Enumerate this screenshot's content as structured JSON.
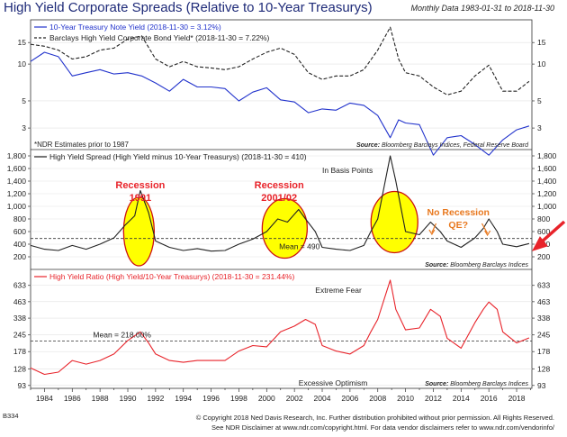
{
  "header": {
    "title": "High Yield Corporate Spreads (Relative to 10-Year Treasurys)",
    "period": "Monthly Data 1983-01-31 to 2018-11-30"
  },
  "footer": {
    "code": "B334",
    "line1": "© Copyright 2018 Ned Davis Research, Inc. Further distribution prohibited without prior permission. All Rights Reserved.",
    "line2": "See NDR Disclaimer at www.ndr.com/copyright.html. For data vendor disclaimers refer to www.ndr.com/vendorinfo/"
  },
  "colors": {
    "blue": "#2233cc",
    "black": "#222222",
    "red": "#e8232a",
    "ellipse_fill": "#ffff00",
    "ellipse_stroke": "#cc1111",
    "orange": "#e8781e"
  },
  "x_ticks": [
    "1984",
    "1986",
    "1988",
    "1990",
    "1992",
    "1994",
    "1996",
    "1998",
    "2000",
    "2002",
    "2004",
    "2006",
    "2008",
    "2010",
    "2012",
    "2014",
    "2016",
    "2018"
  ],
  "chart_data": [
    {
      "type": "line",
      "panel": "top",
      "scale": "log",
      "ylim": [
        2,
        23
      ],
      "yticks": [
        "15",
        "10",
        "5",
        "3"
      ],
      "legend": [
        {
          "label": "10-Year Treasury Note Yield (2018-11-30 = 3.12%)",
          "color": "#2233cc",
          "style": "solid"
        },
        {
          "label": "Barclays High Yield Corporate Bond Yield* (2018-11-30 = 7.22%)",
          "color": "#222222",
          "style": "dashed"
        }
      ],
      "note": "*NDR Estimates prior to 1987",
      "source": "Bloomberg Barclays Indices, Federal Reserve Board",
      "x": [
        1983,
        1984,
        1985,
        1986,
        1987,
        1988,
        1989,
        1990,
        1991,
        1992,
        1993,
        1994,
        1995,
        1996,
        1997,
        1998,
        1999,
        2000,
        2001,
        2002,
        2003,
        2004,
        2005,
        2006,
        2007,
        2008,
        2008.9,
        2009.5,
        2010,
        2011,
        2012,
        2013,
        2014,
        2015,
        2016,
        2017,
        2018,
        2018.9
      ],
      "series": [
        {
          "name": "10-Year Treasury Note Yield",
          "values": [
            10.5,
            12.5,
            11.5,
            8.0,
            8.5,
            9.0,
            8.3,
            8.5,
            8.0,
            7.0,
            6.0,
            7.5,
            6.5,
            6.5,
            6.3,
            5.0,
            5.9,
            6.4,
            5.1,
            4.9,
            4.0,
            4.3,
            4.2,
            4.8,
            4.6,
            3.8,
            2.5,
            3.5,
            3.3,
            3.2,
            1.8,
            2.5,
            2.6,
            2.2,
            1.8,
            2.4,
            2.9,
            3.12
          ]
        },
        {
          "name": "Barclays High Yield Corporate Bond Yield",
          "values": [
            14.5,
            14.0,
            13.0,
            11.0,
            11.5,
            13.0,
            13.5,
            16.0,
            17.0,
            11.0,
            9.5,
            10.5,
            9.5,
            9.3,
            9.0,
            9.5,
            11.0,
            12.5,
            13.5,
            12.0,
            8.5,
            7.5,
            8.0,
            8.0,
            9.0,
            13.0,
            20.0,
            11.0,
            8.5,
            8.0,
            6.5,
            5.6,
            6.0,
            8.0,
            9.8,
            6.0,
            6.0,
            7.22
          ]
        }
      ]
    },
    {
      "type": "line",
      "panel": "middle",
      "ylim": [
        0,
        1900
      ],
      "yticks": [
        "1,800",
        "1,600",
        "1,400",
        "1,200",
        "1,000",
        "800",
        "600",
        "400",
        "200"
      ],
      "legend": [
        {
          "label": "High Yield Spread (High Yield minus 10-Year Treasurys) (2018-11-30 = 410)",
          "color": "#222222",
          "style": "solid"
        }
      ],
      "unit_note": "In Basis Points",
      "mean_label": "Mean = 490",
      "mean": 490,
      "source": "Bloomberg Barclays Indices",
      "annotations": [
        {
          "text": "Recession",
          "color": "#e8232a"
        },
        {
          "text": "1991",
          "color": "#e8232a"
        },
        {
          "text": "Recession",
          "color": "#e8232a"
        },
        {
          "text": "2001/02",
          "color": "#e8232a"
        },
        {
          "text": "No Recession",
          "color": "#e8781e"
        },
        {
          "text": "QE?",
          "color": "#e8781e"
        }
      ],
      "x": [
        1983,
        1984,
        1985,
        1986,
        1987,
        1988,
        1989,
        1989.8,
        1990.5,
        1990.9,
        1991.5,
        1992,
        1993,
        1994,
        1995,
        1996,
        1997,
        1998,
        1999,
        2000,
        2000.8,
        2001.5,
        2002.3,
        2002.8,
        2003.5,
        2004,
        2005,
        2006,
        2007,
        2007.5,
        2008,
        2008.9,
        2009.3,
        2010,
        2011,
        2011.8,
        2012.5,
        2013,
        2014,
        2015,
        2015.6,
        2016,
        2016.6,
        2017,
        2018,
        2018.9
      ],
      "series": [
        {
          "name": "High Yield Spread",
          "values": [
            380,
            320,
            300,
            380,
            320,
            400,
            500,
            700,
            850,
            1250,
            900,
            450,
            350,
            300,
            330,
            290,
            300,
            400,
            480,
            600,
            800,
            750,
            950,
            800,
            600,
            350,
            320,
            300,
            380,
            600,
            800,
            1800,
            1400,
            600,
            550,
            750,
            600,
            450,
            350,
            500,
            650,
            800,
            600,
            400,
            360,
            410
          ]
        }
      ]
    },
    {
      "type": "line",
      "panel": "bottom",
      "scale": "log",
      "ylim": [
        88,
        860
      ],
      "yticks": [
        "633",
        "463",
        "338",
        "245",
        "178",
        "128",
        "93"
      ],
      "legend": [
        {
          "label": "High Yield Ratio (High Yield/10-Year Treasurys) (2018-11-30 = 231.44%)",
          "color": "#e8232a",
          "style": "solid"
        }
      ],
      "upper_label": "Extreme Fear",
      "lower_label": "Excessive Optimism",
      "mean_label": "Mean = 218.00%",
      "mean": 218,
      "source": "Bloomberg Barclays Indices",
      "x": [
        1983,
        1984,
        1985,
        1986,
        1987,
        1988,
        1989,
        1990,
        1990.9,
        1991.5,
        1992,
        1993,
        1994,
        1995,
        1996,
        1997,
        1998,
        1999,
        2000,
        2001,
        2002,
        2002.8,
        2003.5,
        2004,
        2005,
        2006,
        2007,
        2007.5,
        2008,
        2008.9,
        2009.3,
        2010,
        2011,
        2011.8,
        2012.5,
        2013,
        2014,
        2015,
        2015.6,
        2016,
        2016.6,
        2017,
        2018,
        2018.9
      ],
      "series": [
        {
          "name": "High Yield Ratio",
          "values": [
            130,
            115,
            120,
            150,
            140,
            150,
            170,
            220,
            260,
            210,
            170,
            150,
            145,
            150,
            150,
            150,
            180,
            200,
            195,
            260,
            290,
            330,
            300,
            200,
            180,
            170,
            200,
            260,
            330,
            700,
            400,
            270,
            280,
            400,
            350,
            230,
            190,
            310,
            400,
            460,
            400,
            260,
            210,
            231.44
          ]
        }
      ]
    }
  ]
}
